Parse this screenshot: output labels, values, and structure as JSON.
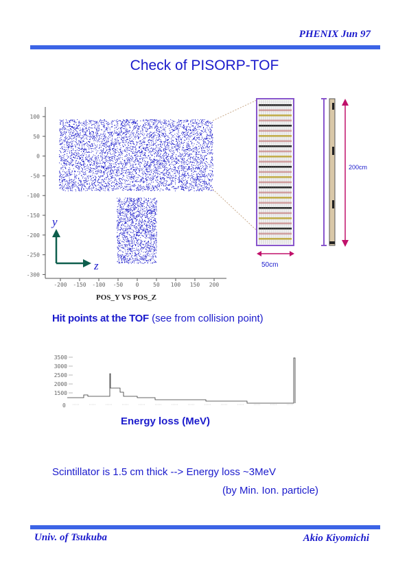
{
  "header": {
    "right_text": "PHENIX  Jun 97"
  },
  "title": "Check of PISORP-TOF",
  "scatter_plot": {
    "x_tick_labels": [
      "-200",
      "-150",
      "-100",
      "-50",
      "0",
      "50",
      "100",
      "150",
      "200"
    ],
    "y_tick_labels": [
      "100",
      "50",
      "0",
      "-50",
      "-100",
      "-150",
      "-200",
      "-250",
      "-300"
    ],
    "axis_title": "POS_Y  VS  POS_Z",
    "axis_y_letter": "y",
    "axis_z_letter": "z",
    "colors": {
      "points": "#1010c8",
      "arrows": "#0d5e4c",
      "frame": "#555555"
    }
  },
  "detector": {
    "width_label": "50cm",
    "height_label": "200cm",
    "colors": {
      "outline": "#8855cc",
      "arrow": "#c0106a",
      "callout": "#c8a888"
    }
  },
  "caption_hits": {
    "bold": "Hit points at the TOF",
    "rest": " (see from collision point)"
  },
  "histogram": {
    "y_tick_labels": [
      "3500",
      "3000",
      "2500",
      "2000",
      "1500"
    ],
    "x_first_label": "0"
  },
  "caption_energy": "Energy loss (MeV)",
  "note_line1": "Scintillator is 1.5 cm thick  --> Energy loss ~3MeV",
  "note_line2": "(by Min. Ion. particle)",
  "footer": {
    "left": "Univ. of Tsukuba",
    "right": "Akio Kiyomichi"
  },
  "colors": {
    "text": "#1a1acc",
    "rule": "#3c64e6"
  }
}
